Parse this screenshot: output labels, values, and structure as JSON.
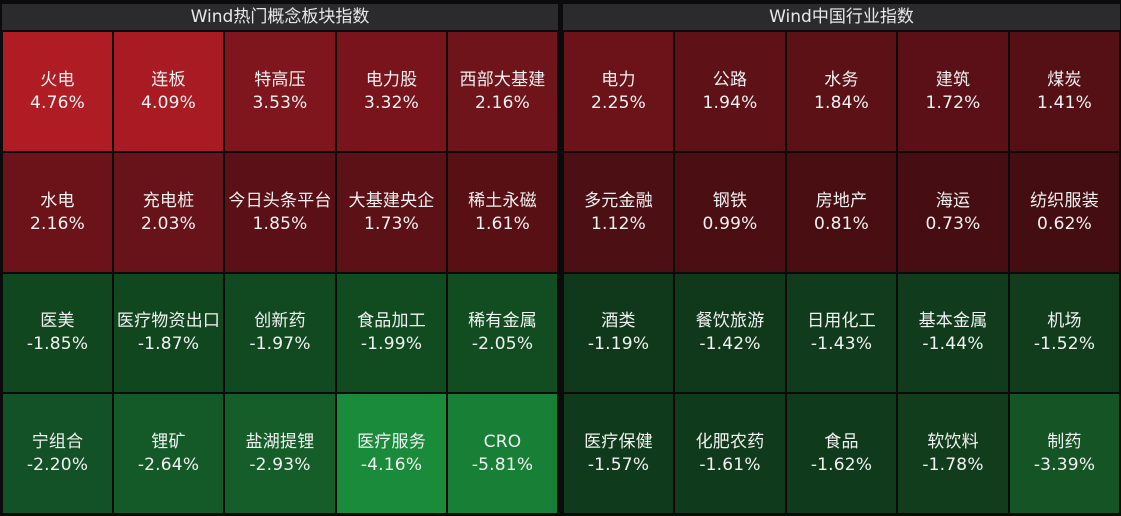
{
  "panels": [
    {
      "title": "Wind热门概念板块指数",
      "tiles": [
        {
          "name": "火电",
          "pct": "4.76%",
          "color": "#b01c24"
        },
        {
          "name": "连板",
          "pct": "4.09%",
          "color": "#a81b23"
        },
        {
          "name": "特高压",
          "pct": "3.53%",
          "color": "#7f151d"
        },
        {
          "name": "电力股",
          "pct": "3.32%",
          "color": "#7a141c"
        },
        {
          "name": "西部大基建",
          "pct": "2.16%",
          "color": "#6e141a"
        },
        {
          "name": "水电",
          "pct": "2.16%",
          "color": "#6c1219"
        },
        {
          "name": "充电桩",
          "pct": "2.03%",
          "color": "#681219"
        },
        {
          "name": "今日头条平台",
          "pct": "1.85%",
          "color": "#5a1016"
        },
        {
          "name": "大基建央企",
          "pct": "1.73%",
          "color": "#5c1117"
        },
        {
          "name": "稀土永磁",
          "pct": "1.61%",
          "color": "#591015"
        },
        {
          "name": "医美",
          "pct": "-1.85%",
          "color": "#11471f"
        },
        {
          "name": "医疗物资出口",
          "pct": "-1.87%",
          "color": "#11471f"
        },
        {
          "name": "创新药",
          "pct": "-1.97%",
          "color": "#114a20"
        },
        {
          "name": "食品加工",
          "pct": "-1.99%",
          "color": "#114c21"
        },
        {
          "name": "稀有金属",
          "pct": "-2.05%",
          "color": "#124d22"
        },
        {
          "name": "宁组合",
          "pct": "-2.20%",
          "color": "#135126"
        },
        {
          "name": "锂矿",
          "pct": "-2.64%",
          "color": "#145a28"
        },
        {
          "name": "盐湖提锂",
          "pct": "-2.93%",
          "color": "#155e2a"
        },
        {
          "name": "医疗服务",
          "pct": "-4.16%",
          "color": "#1a8a3b"
        },
        {
          "name": "CRO",
          "pct": "-5.81%",
          "color": "#178036"
        }
      ]
    },
    {
      "title": "Wind中国行业指数",
      "tiles": [
        {
          "name": "电力",
          "pct": "2.25%",
          "color": "#6c1219"
        },
        {
          "name": "公路",
          "pct": "1.94%",
          "color": "#5e1117"
        },
        {
          "name": "水务",
          "pct": "1.84%",
          "color": "#5c1117"
        },
        {
          "name": "建筑",
          "pct": "1.72%",
          "color": "#5a1016"
        },
        {
          "name": "煤炭",
          "pct": "1.41%",
          "color": "#541014"
        },
        {
          "name": "多元金融",
          "pct": "1.12%",
          "color": "#4c0f13"
        },
        {
          "name": "钢铁",
          "pct": "0.99%",
          "color": "#4a0e13"
        },
        {
          "name": "房地产",
          "pct": "0.81%",
          "color": "#480e12"
        },
        {
          "name": "海运",
          "pct": "0.73%",
          "color": "#460e12"
        },
        {
          "name": "纺织服装",
          "pct": "0.62%",
          "color": "#440d11"
        },
        {
          "name": "酒类",
          "pct": "-1.19%",
          "color": "#10391b"
        },
        {
          "name": "餐饮旅游",
          "pct": "-1.42%",
          "color": "#10391b"
        },
        {
          "name": "日用化工",
          "pct": "-1.43%",
          "color": "#103b1c"
        },
        {
          "name": "基本金属",
          "pct": "-1.44%",
          "color": "#103b1c"
        },
        {
          "name": "机场",
          "pct": "-1.52%",
          "color": "#113d1d"
        },
        {
          "name": "医疗保健",
          "pct": "-1.57%",
          "color": "#103a1c"
        },
        {
          "name": "化肥农药",
          "pct": "-1.61%",
          "color": "#103a1c"
        },
        {
          "name": "食品",
          "pct": "-1.62%",
          "color": "#103a1c"
        },
        {
          "name": "软饮料",
          "pct": "-1.78%",
          "color": "#113d1d"
        },
        {
          "name": "制药",
          "pct": "-3.39%",
          "color": "#145425"
        }
      ]
    }
  ]
}
